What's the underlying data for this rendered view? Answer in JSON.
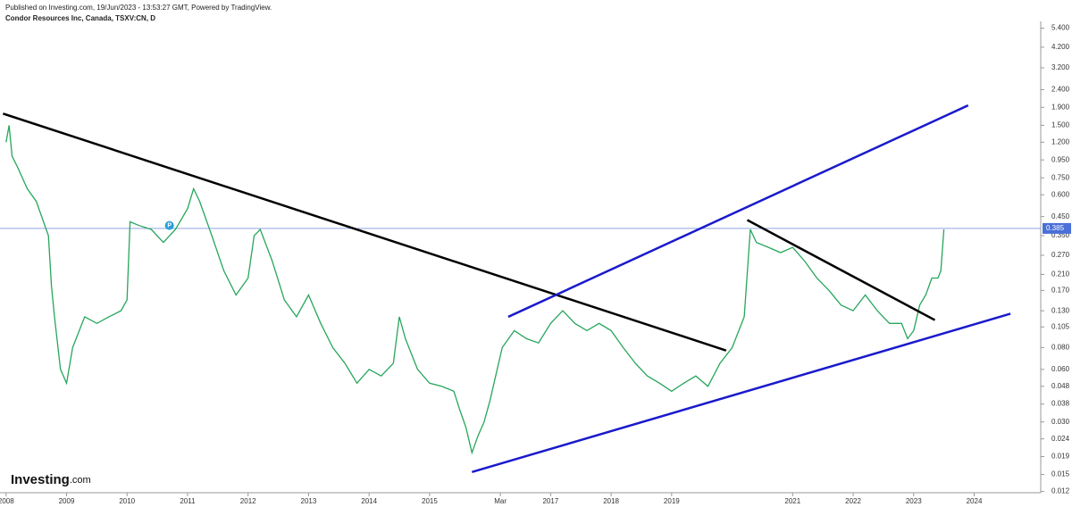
{
  "header": {
    "published": "Published on Investing.com, 19/Jun/2023 - 13:53:27 GMT, Powered by TradingView.",
    "instrument": "Condor Resources Inc, Canada, TSXV:CN, D"
  },
  "logo": {
    "brand": "Investing",
    "suffix": ".com"
  },
  "chart_data": {
    "type": "line",
    "log_scale": true,
    "series": [
      {
        "color": "#26a65b",
        "x": [
          2008.0,
          2008.05,
          2008.1,
          2008.2,
          2008.35,
          2008.5,
          2008.7,
          2008.75,
          2008.8,
          2008.9,
          2009.0,
          2009.1,
          2009.3,
          2009.5,
          2009.7,
          2009.9,
          2010.0,
          2010.05,
          2010.2,
          2010.4,
          2010.6,
          2010.8,
          2011.0,
          2011.1,
          2011.2,
          2011.4,
          2011.6,
          2011.8,
          2012.0,
          2012.1,
          2012.2,
          2012.4,
          2012.6,
          2012.8,
          2013.0,
          2013.2,
          2013.4,
          2013.6,
          2013.8,
          2014.0,
          2014.2,
          2014.4,
          2014.5,
          2014.6,
          2014.8,
          2015.0,
          2015.2,
          2015.4,
          2015.5,
          2015.6,
          2015.7,
          2015.8,
          2015.9,
          2016.0,
          2016.2,
          2016.4,
          2016.6,
          2016.8,
          2017.0,
          2017.2,
          2017.4,
          2017.6,
          2017.8,
          2018.0,
          2018.2,
          2018.4,
          2018.6,
          2018.8,
          2019.0,
          2019.2,
          2019.4,
          2019.6,
          2019.8,
          2020.0,
          2020.2,
          2020.3,
          2020.4,
          2020.6,
          2020.8,
          2021.0,
          2021.2,
          2021.4,
          2021.6,
          2021.8,
          2022.0,
          2022.2,
          2022.4,
          2022.6,
          2022.8,
          2022.9,
          2023.0,
          2023.1,
          2023.2,
          2023.3,
          2023.4,
          2023.45,
          2023.5
        ],
        "values": [
          1.2,
          1.5,
          1.0,
          0.85,
          0.65,
          0.55,
          0.35,
          0.18,
          0.12,
          0.06,
          0.05,
          0.08,
          0.12,
          0.11,
          0.12,
          0.13,
          0.15,
          0.42,
          0.4,
          0.38,
          0.32,
          0.38,
          0.5,
          0.65,
          0.55,
          0.35,
          0.22,
          0.16,
          0.2,
          0.35,
          0.38,
          0.25,
          0.15,
          0.12,
          0.16,
          0.11,
          0.08,
          0.065,
          0.05,
          0.06,
          0.055,
          0.065,
          0.12,
          0.09,
          0.06,
          0.05,
          0.048,
          0.045,
          0.035,
          0.028,
          0.02,
          0.025,
          0.03,
          0.04,
          0.08,
          0.1,
          0.09,
          0.085,
          0.11,
          0.13,
          0.11,
          0.1,
          0.11,
          0.1,
          0.08,
          0.065,
          0.055,
          0.05,
          0.045,
          0.05,
          0.055,
          0.048,
          0.065,
          0.08,
          0.12,
          0.38,
          0.32,
          0.3,
          0.28,
          0.3,
          0.25,
          0.2,
          0.17,
          0.14,
          0.13,
          0.16,
          0.13,
          0.11,
          0.11,
          0.09,
          0.1,
          0.14,
          0.16,
          0.2,
          0.2,
          0.22,
          0.38
        ]
      }
    ],
    "last_price": 0.385,
    "last_price_color": "#4a6fd8",
    "trendlines": [
      {
        "color": "#000000",
        "x": [
          2007.95,
          2019.9
        ],
        "y": [
          1.75,
          0.077
        ]
      },
      {
        "color": "#1a1acc",
        "x": [
          2016.3,
          2023.9
        ],
        "y": [
          0.12,
          1.95
        ]
      },
      {
        "color": "#1a1acc",
        "x": [
          2015.7,
          2024.6
        ],
        "y": [
          0.0155,
          0.125
        ]
      },
      {
        "color": "#000000",
        "x": [
          2020.25,
          2023.35
        ],
        "y": [
          0.43,
          0.115
        ]
      }
    ],
    "marker": {
      "label": "P",
      "x": 2010.7,
      "y": 0.4,
      "color": "#2a9fd8"
    },
    "xlim": [
      2007.9,
      2025.1
    ],
    "ylim": [
      0.0118,
      5.9
    ],
    "xticks": [
      2008,
      2009,
      2010,
      2011,
      2012,
      2013,
      2014,
      2015,
      {
        "value": 2016.17,
        "label": "Mar"
      },
      2017,
      2018,
      2019,
      2021,
      2022,
      2023,
      2024
    ],
    "yticks": [
      0.012,
      0.015,
      0.019,
      0.024,
      {
        "value": 0.03,
        "label": "0.030"
      },
      0.038,
      0.048,
      {
        "value": 0.06,
        "label": "0.060"
      },
      {
        "value": 0.08,
        "label": "0.080"
      },
      0.105,
      {
        "value": 0.13,
        "label": "0.130"
      },
      {
        "value": 0.17,
        "label": "0.170"
      },
      {
        "value": 0.21,
        "label": "0.210"
      },
      {
        "value": 0.27,
        "label": "0.270"
      },
      {
        "value": 0.35,
        "label": "0.350"
      },
      {
        "value": 0.45,
        "label": "0.450"
      },
      {
        "value": 0.6,
        "label": "0.600"
      },
      {
        "value": 0.75,
        "label": "0.750"
      },
      {
        "value": 0.95,
        "label": "0.950"
      },
      {
        "value": 1.2,
        "label": "1.200"
      },
      {
        "value": 1.5,
        "label": "1.500"
      },
      {
        "value": 1.9,
        "label": "1.900"
      },
      {
        "value": 2.4,
        "label": "2.400"
      },
      {
        "value": 3.2,
        "label": "3.200"
      },
      {
        "value": 4.2,
        "label": "4.200"
      },
      {
        "value": 5.4,
        "label": "5.400"
      }
    ]
  }
}
